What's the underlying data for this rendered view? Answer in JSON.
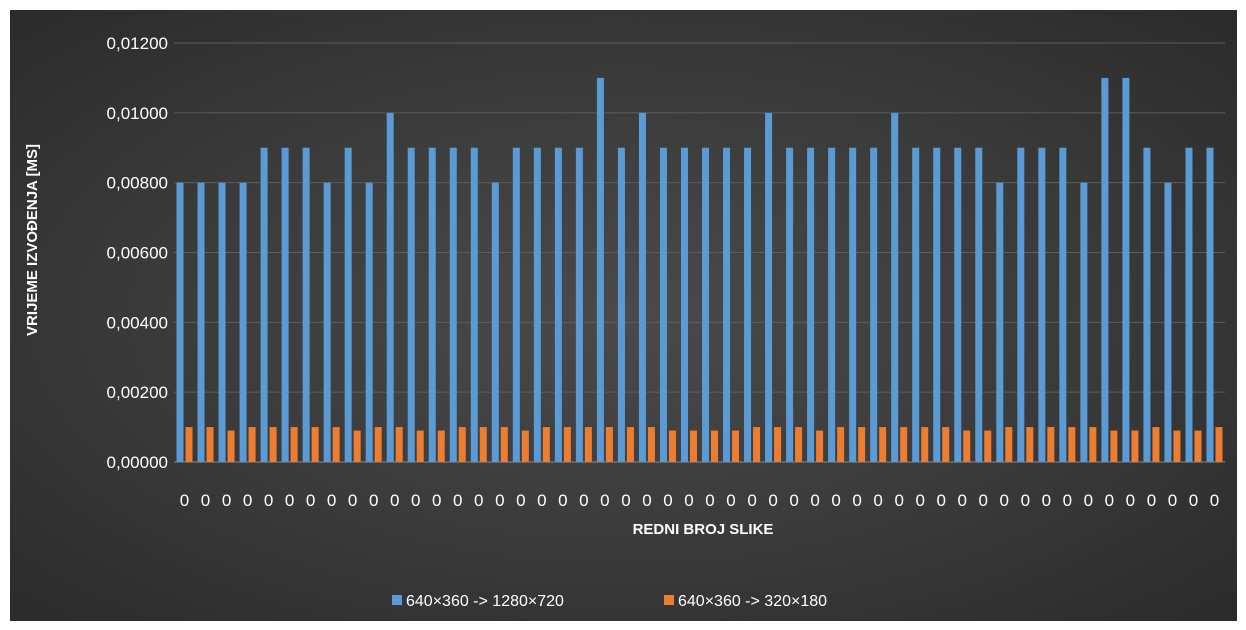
{
  "chart_data": {
    "type": "bar",
    "title": "",
    "xlabel": "REDNI BROJ SLIKE",
    "ylabel": "VRIJEME IZVOĐENJA [MS]",
    "ylim": [
      0,
      0.012
    ],
    "yticks": [
      "0,00000",
      "0,00200",
      "0,00400",
      "0,00600",
      "0,00800",
      "0,01000",
      "0,01200"
    ],
    "grid": true,
    "legend_position": "bottom",
    "categories": [
      "0",
      "0",
      "0",
      "0",
      "0",
      "0",
      "0",
      "0",
      "0",
      "0",
      "0",
      "0",
      "0",
      "0",
      "0",
      "0",
      "0",
      "0",
      "0",
      "0",
      "0",
      "0",
      "0",
      "0",
      "0",
      "0",
      "0",
      "0",
      "0",
      "0",
      "0",
      "0",
      "0",
      "0",
      "0",
      "0",
      "0",
      "0",
      "0",
      "0",
      "0",
      "0",
      "0",
      "0",
      "0",
      "0",
      "0",
      "0",
      "0",
      "0"
    ],
    "series": [
      {
        "name": "640×360 -> 1280×720",
        "color": "#5b9bd5",
        "values": [
          0.008,
          0.008,
          0.008,
          0.008,
          0.009,
          0.009,
          0.009,
          0.008,
          0.009,
          0.008,
          0.01,
          0.009,
          0.009,
          0.009,
          0.009,
          0.008,
          0.009,
          0.009,
          0.009,
          0.009,
          0.011,
          0.009,
          0.01,
          0.009,
          0.009,
          0.009,
          0.009,
          0.009,
          0.01,
          0.009,
          0.009,
          0.009,
          0.009,
          0.009,
          0.01,
          0.009,
          0.009,
          0.009,
          0.009,
          0.008,
          0.009,
          0.009,
          0.009,
          0.008,
          0.011,
          0.011,
          0.009,
          0.008,
          0.009,
          0.009
        ]
      },
      {
        "name": "640×360 -> 320×180",
        "color": "#ed7d31",
        "values": [
          0.001,
          0.001,
          0.0009,
          0.001,
          0.001,
          0.001,
          0.001,
          0.001,
          0.0009,
          0.001,
          0.001,
          0.0009,
          0.0009,
          0.001,
          0.001,
          0.001,
          0.0009,
          0.001,
          0.001,
          0.001,
          0.001,
          0.001,
          0.001,
          0.0009,
          0.0009,
          0.0009,
          0.0009,
          0.001,
          0.001,
          0.001,
          0.0009,
          0.001,
          0.001,
          0.001,
          0.001,
          0.001,
          0.001,
          0.0009,
          0.0009,
          0.001,
          0.001,
          0.001,
          0.001,
          0.001,
          0.0009,
          0.0009,
          0.001,
          0.0009,
          0.0009,
          0.001
        ]
      }
    ]
  }
}
